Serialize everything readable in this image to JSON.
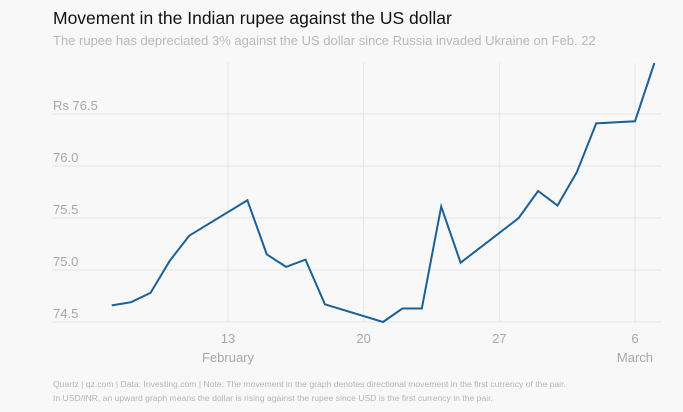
{
  "chart_data": {
    "type": "line",
    "title": "Movement in the Indian rupee against the US dollar",
    "subtitle": "The rupee has depreciated 3% against the US dollar since Russia invaded Ukraine on Feb. 22",
    "xlabel": "",
    "ylabel": "",
    "ylim": [
      74.5,
      77.0
    ],
    "y_ticks": [
      {
        "value": 74.5,
        "label": "74.5"
      },
      {
        "value": 75.0,
        "label": "75.0"
      },
      {
        "value": 75.5,
        "label": "75.5"
      },
      {
        "value": 76.0,
        "label": "76.0"
      },
      {
        "value": 76.5,
        "label": "Rs 76.5"
      }
    ],
    "x_ticks": [
      {
        "date": "Feb 13",
        "label": "13",
        "sublabel": "February"
      },
      {
        "date": "Feb 20",
        "label": "20",
        "sublabel": ""
      },
      {
        "date": "Feb 27",
        "label": "27",
        "sublabel": ""
      },
      {
        "date": "Mar 6",
        "label": "6",
        "sublabel": "March"
      }
    ],
    "grid": true,
    "line_color": "#1b6096",
    "series": [
      {
        "x": [
          "Feb 7",
          "Feb 8",
          "Feb 9",
          "Feb 10",
          "Feb 11",
          "Feb 14",
          "Feb 15",
          "Feb 16",
          "Feb 17",
          "Feb 18",
          "Feb 21",
          "Feb 22",
          "Feb 23",
          "Feb 24",
          "Feb 25",
          "Feb 28",
          "Mar 1",
          "Mar 2",
          "Mar 3",
          "Mar 4",
          "Mar 6",
          "Mar 7"
        ],
        "values": [
          74.66,
          74.69,
          74.78,
          75.09,
          75.33,
          75.67,
          75.15,
          75.03,
          75.1,
          74.67,
          74.5,
          74.63,
          74.63,
          75.61,
          75.07,
          75.5,
          75.76,
          75.62,
          75.94,
          76.41,
          76.43,
          76.99
        ]
      }
    ]
  },
  "footer": {
    "line1": "Quartz | qz.com | Data: Investing.com | Note: The movement in the graph denotes directional movement in the first currency of the pair.",
    "line2": "In USD/INR, an upward graph means the dollar is rising against the rupee since USD is the first currency in the pair."
  }
}
